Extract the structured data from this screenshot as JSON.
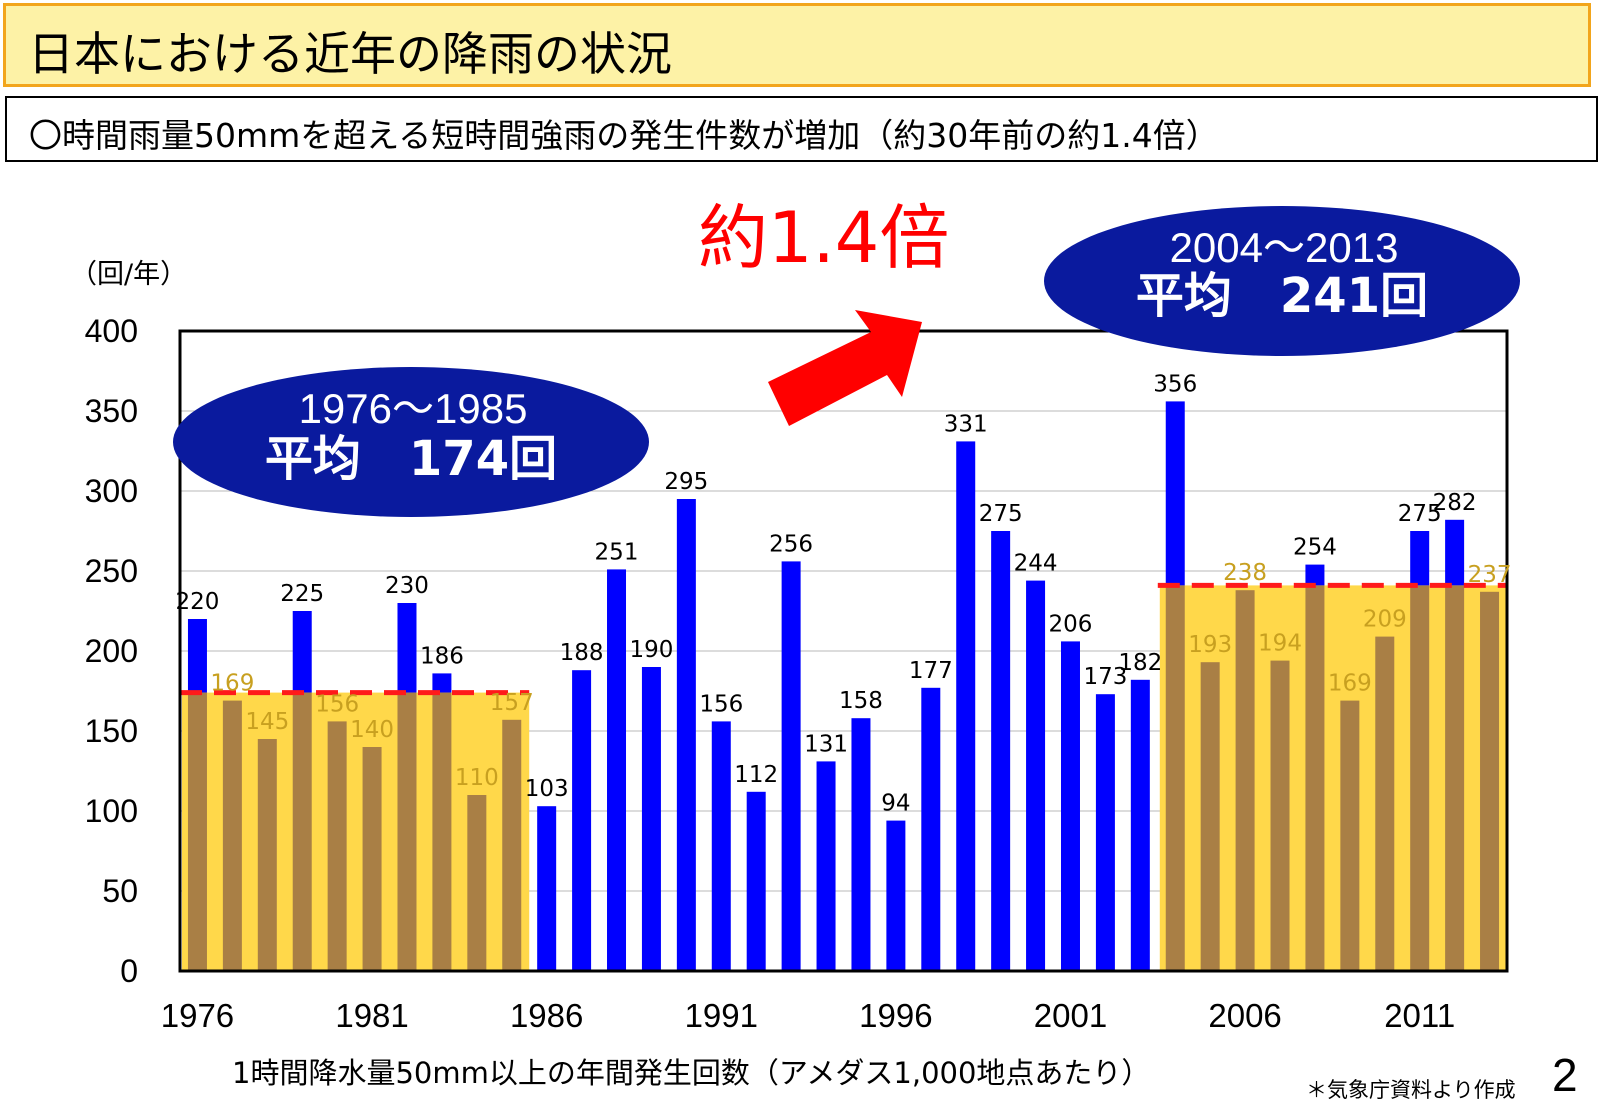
{
  "header": {
    "title": "日本における近年の降雨の状況",
    "subtitle": "〇時間雨量50mmを超える短時間強雨の発生件数が増加（約30年前の約1.4倍）"
  },
  "annotations": {
    "ratio_label": "約1.4倍",
    "early_period_range": "1976～1985",
    "early_period_avg": "平均　174回",
    "late_period_range": "2004～2013",
    "late_period_avg": "平均　241回"
  },
  "footer": {
    "caption": "1時間降水量50mm以上の年間発生回数（アメダス1,000地点あたり）",
    "source": "＊気象庁資料より作成",
    "page_number": "2"
  },
  "colors": {
    "bar": "#0000ff",
    "bar_shaded": "#a97f45",
    "band": "#ffd84a",
    "avg_line": "#ff1a1a",
    "ellipse": "#0a1a9e",
    "ratio_text": "#ff0000",
    "label_in_band": "#c8a020"
  },
  "chart_data": {
    "type": "bar",
    "title": "1時間降水量50mm以上の年間発生回数（アメダス1,000地点あたり）",
    "ylabel": "（回/年）",
    "xlabel": "",
    "ylim": [
      0,
      400
    ],
    "yticks": [
      0,
      50,
      100,
      150,
      200,
      250,
      300,
      350,
      400
    ],
    "xtick_labels": [
      "1976",
      "1981",
      "1986",
      "1991",
      "1996",
      "2001",
      "2006",
      "2011"
    ],
    "categories": [
      "1976",
      "1977",
      "1978",
      "1979",
      "1980",
      "1981",
      "1982",
      "1983",
      "1984",
      "1985",
      "1986",
      "1987",
      "1988",
      "1989",
      "1990",
      "1991",
      "1992",
      "1993",
      "1994",
      "1995",
      "1996",
      "1997",
      "1998",
      "1999",
      "2000",
      "2001",
      "2002",
      "2003",
      "2004",
      "2005",
      "2006",
      "2007",
      "2008",
      "2009",
      "2010",
      "2011",
      "2012",
      "2013"
    ],
    "values": [
      220,
      169,
      145,
      225,
      156,
      140,
      230,
      186,
      110,
      157,
      103,
      188,
      251,
      190,
      295,
      156,
      112,
      256,
      131,
      158,
      94,
      177,
      331,
      275,
      244,
      206,
      173,
      182,
      356,
      193,
      238,
      194,
      254,
      169,
      209,
      275,
      282,
      237
    ],
    "averages": [
      {
        "label": "1976～1985",
        "from": "1976",
        "to": "1985",
        "value": 174
      },
      {
        "label": "2004～2013",
        "from": "2004",
        "to": "2013",
        "value": 241
      }
    ]
  }
}
